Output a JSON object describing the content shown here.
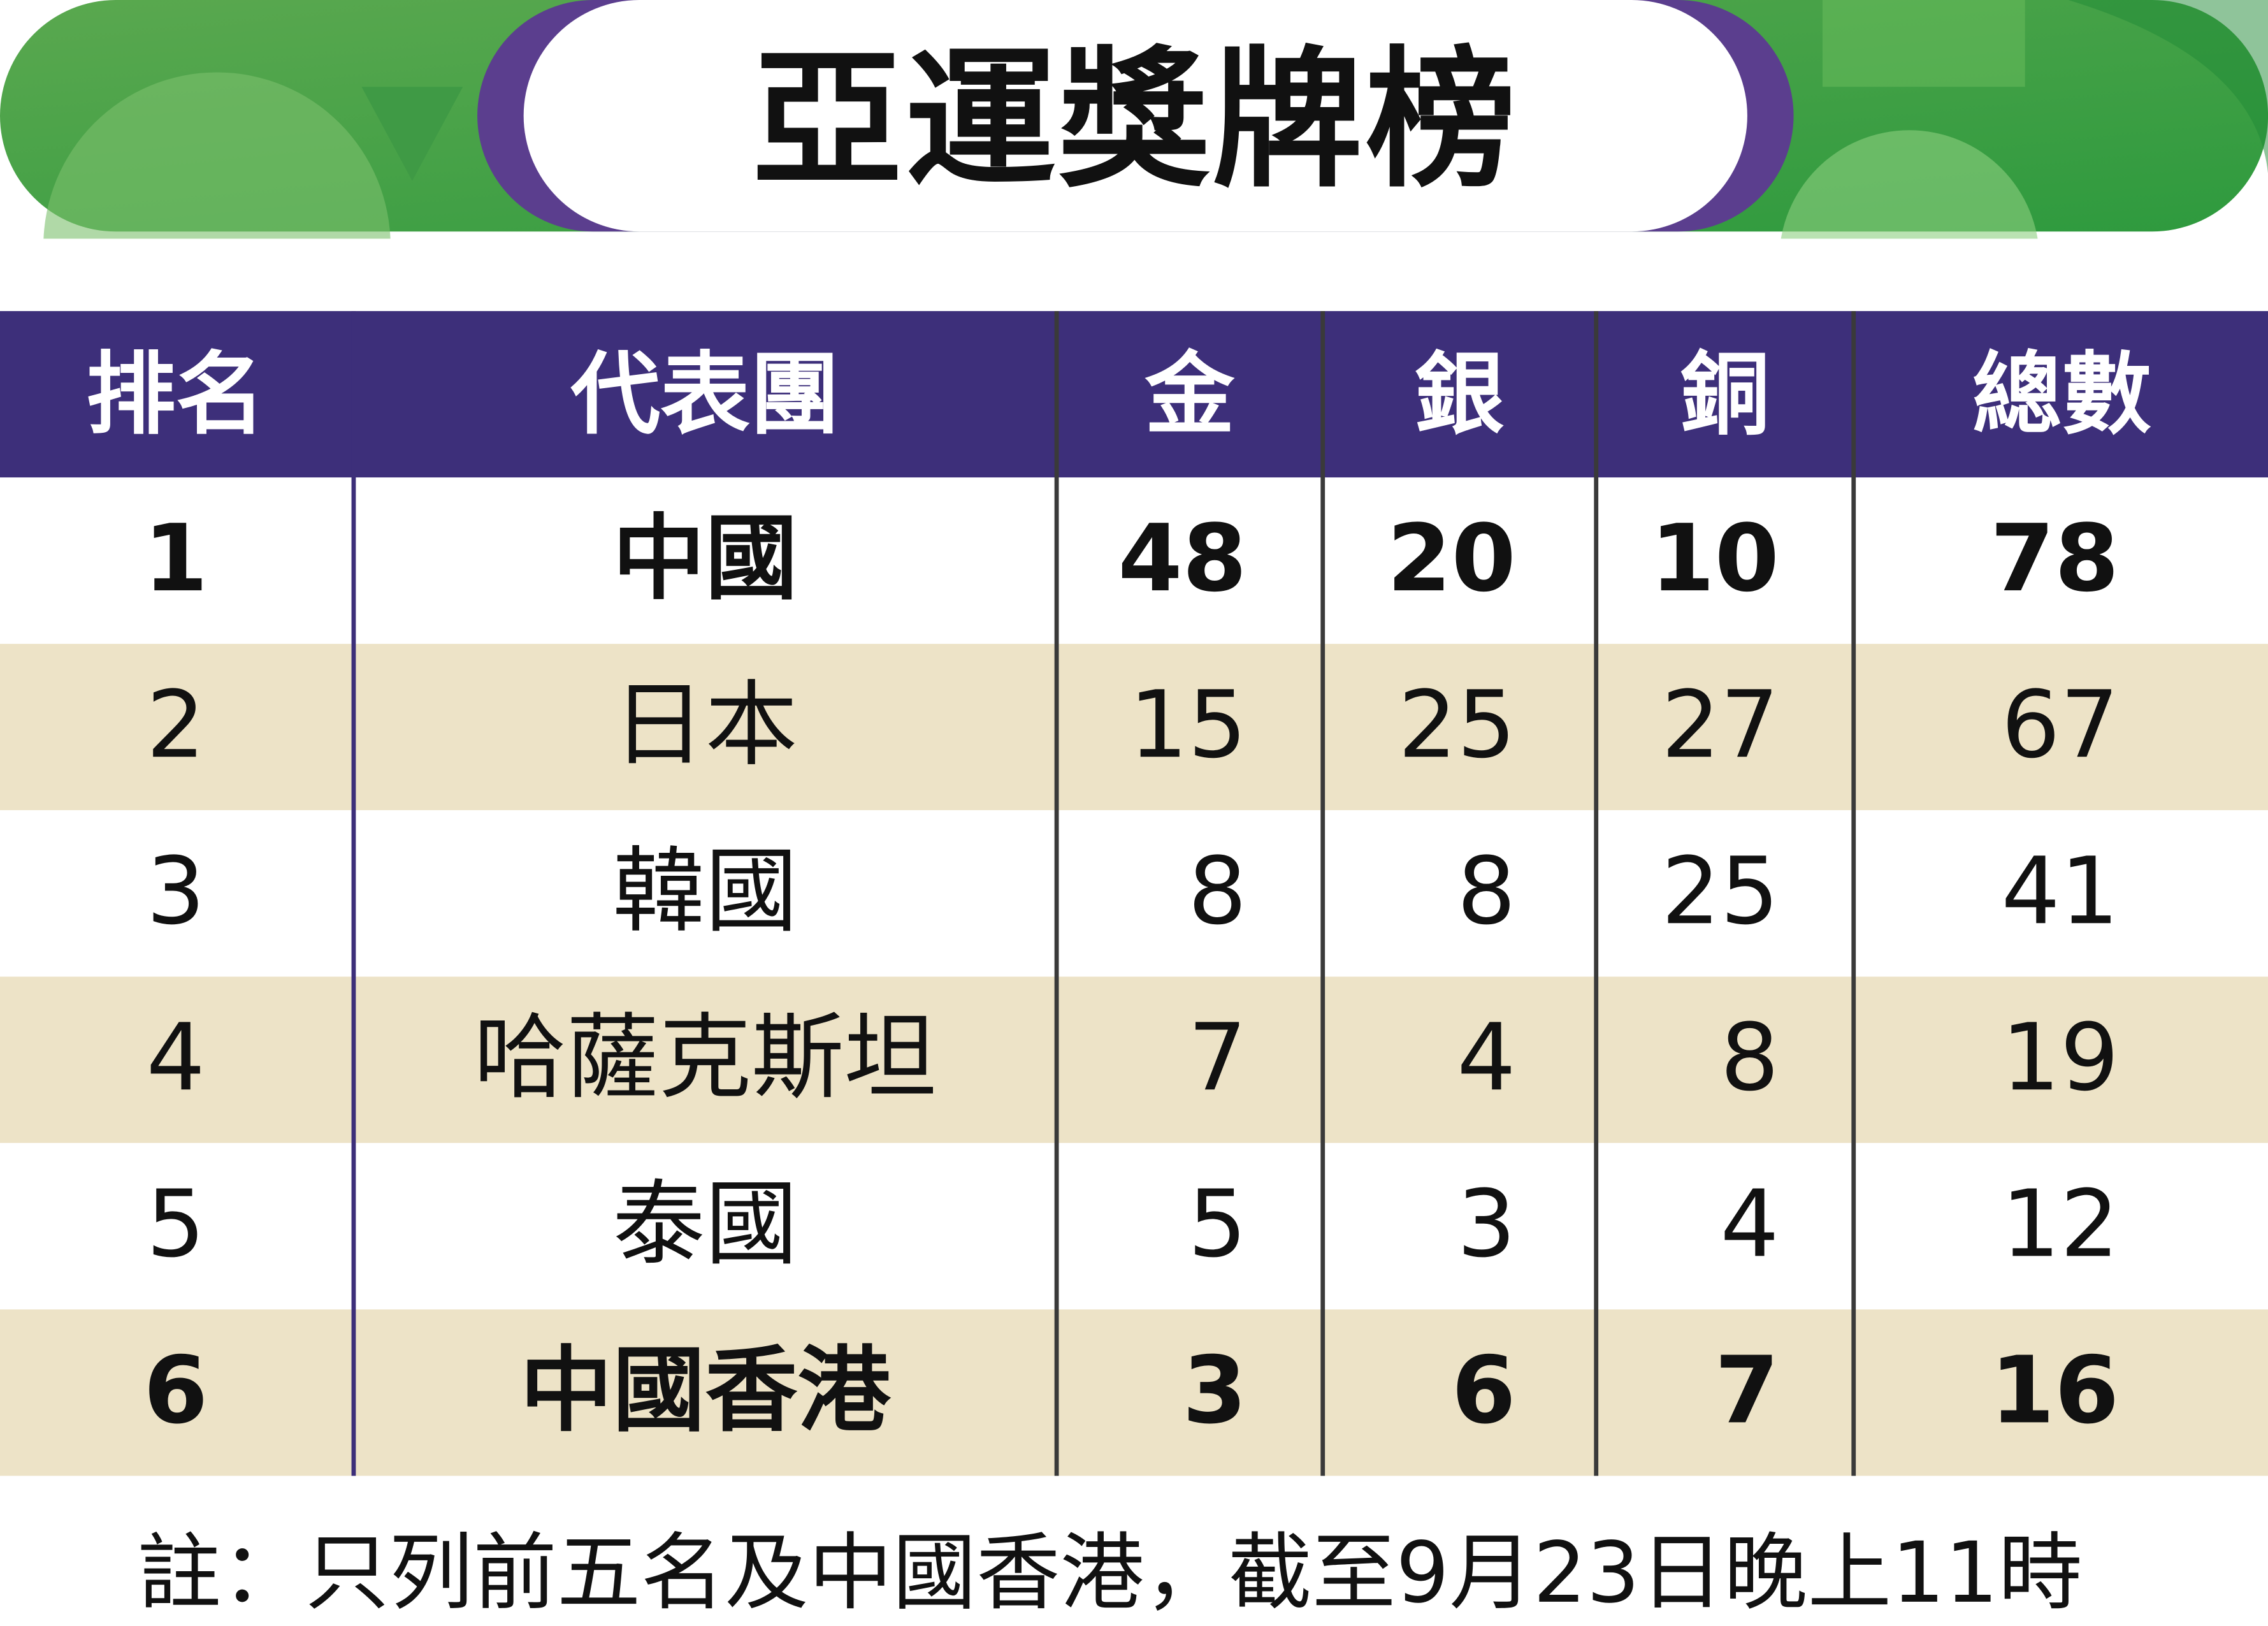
{
  "header": {
    "title": "亞運獎牌榜"
  },
  "table": {
    "columns": [
      "排名",
      "代表團",
      "金",
      "銀",
      "銅",
      "總數"
    ],
    "rows": [
      [
        1,
        "中國",
        48,
        20,
        10,
        78
      ],
      [
        2,
        "日本",
        15,
        25,
        27,
        67
      ],
      [
        3,
        "韓國",
        8,
        8,
        25,
        41
      ],
      [
        4,
        "哈薩克斯坦",
        7,
        4,
        8,
        19
      ],
      [
        5,
        "泰國",
        5,
        3,
        4,
        12
      ],
      [
        6,
        "中國香港",
        3,
        6,
        7,
        16
      ]
    ]
  },
  "note": "註：只列前五名及中國香港，截至9月23日晚上11時"
}
